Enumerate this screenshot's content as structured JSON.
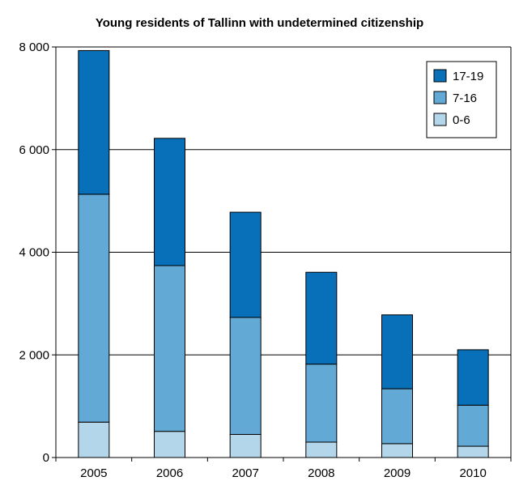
{
  "chart_data": {
    "type": "bar",
    "stacked": true,
    "title": "Young residents of Tallinn with undetermined citizenship",
    "xlabel": "",
    "ylabel": "",
    "categories": [
      "2005",
      "2006",
      "2007",
      "2008",
      "2009",
      "2010"
    ],
    "series": [
      {
        "name": "0-6",
        "color": "#b4d6ea",
        "values": [
          690,
          510,
          450,
          300,
          270,
          220
        ]
      },
      {
        "name": "7-16",
        "color": "#62a9d5",
        "values": [
          4440,
          3230,
          2280,
          1520,
          1070,
          800
        ]
      },
      {
        "name": "17-19",
        "color": "#0870b8",
        "values": [
          2800,
          2480,
          2050,
          1790,
          1440,
          1080
        ]
      }
    ],
    "ylim": [
      0,
      8000
    ],
    "yticks": [
      0,
      2000,
      4000,
      6000,
      8000
    ],
    "ytick_labels": [
      "0",
      "2 000",
      "4 000",
      "6 000",
      "8 000"
    ],
    "grid": true,
    "legend_position": "top-right",
    "legend_order": [
      "17-19",
      "7-16",
      "0-6"
    ]
  }
}
